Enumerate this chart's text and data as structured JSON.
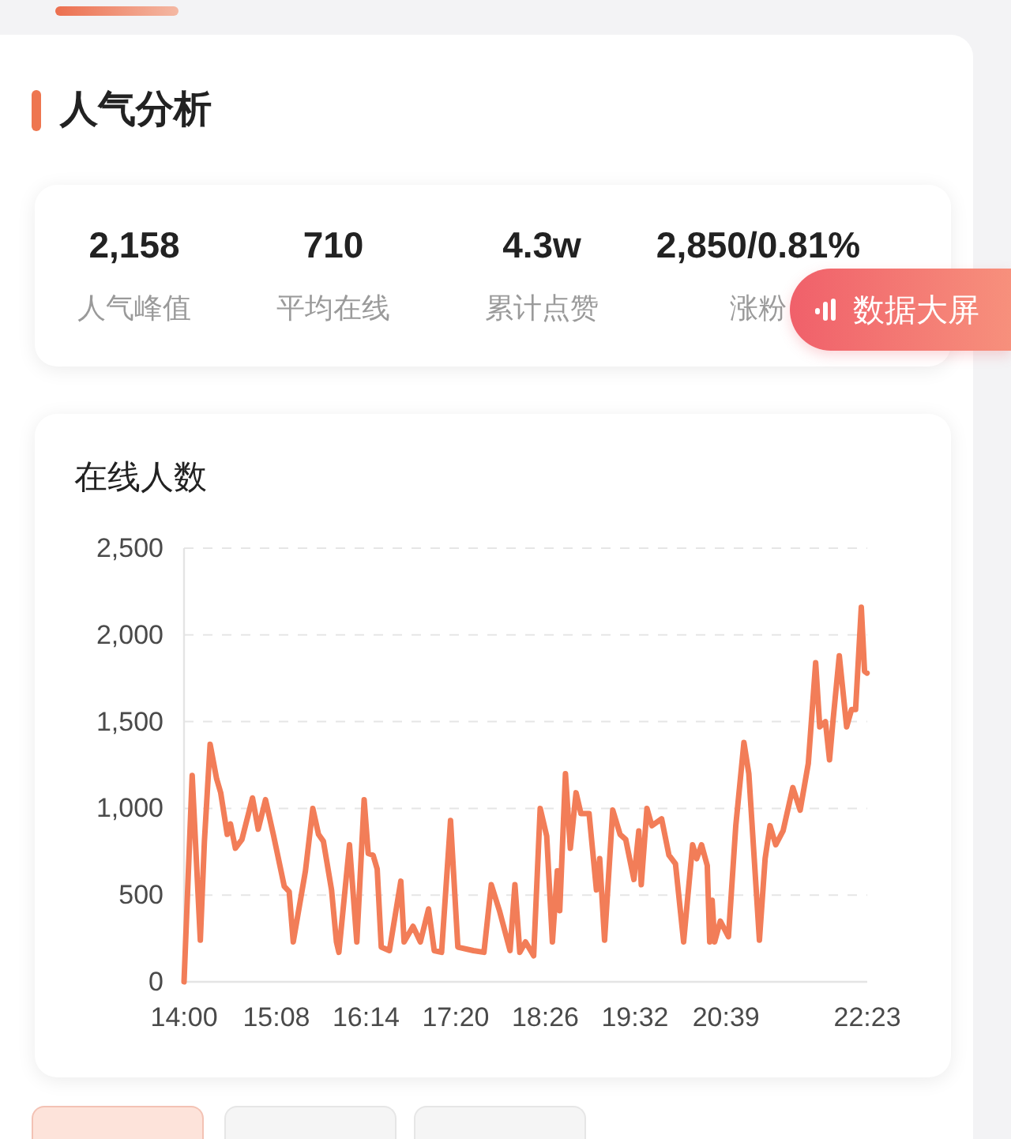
{
  "chart_data": [
    {
      "type": "other",
      "title": "人气分析",
      "annotations": [
        "2,158",
        "人气峰值",
        "710",
        "平均在线",
        "4.3w",
        "累计点赞",
        "2,850/0.81%",
        "涨粉",
        "数据大屏"
      ]
    },
    {
      "type": "line",
      "title": "在线人数",
      "color": "#f27d58",
      "grid": "y",
      "xlim": [
        14,
        22.383
      ],
      "xticks": [
        {
          "value": 14,
          "label": "14:00"
        },
        {
          "value": 15.133,
          "label": "15:08"
        },
        {
          "value": 16.233,
          "label": "16:14"
        },
        {
          "value": 17.333,
          "label": "17:20"
        },
        {
          "value": 18.433,
          "label": "18:26"
        },
        {
          "value": 19.533,
          "label": "19:32"
        },
        {
          "value": 20.65,
          "label": "20:39"
        },
        {
          "value": 22.383,
          "label": "22:23"
        }
      ],
      "ylim": [
        0,
        2500
      ],
      "yticks": [
        0,
        500,
        {
          "value": 1000,
          "label": "1,000"
        },
        {
          "value": 1500,
          "label": "1,500"
        },
        {
          "value": 2000,
          "label": "2,000"
        },
        {
          "value": 2500,
          "label": "2,500"
        }
      ],
      "x": [
        14.0,
        14.1,
        14.2,
        14.25,
        14.32,
        14.4,
        14.45,
        14.53,
        14.57,
        14.63,
        14.71,
        14.84,
        14.91,
        15.0,
        15.1,
        15.23,
        15.29,
        15.34,
        15.49,
        15.58,
        15.65,
        15.71,
        15.81,
        15.87,
        15.9,
        16.03,
        16.12,
        16.21,
        16.26,
        16.32,
        16.37,
        16.42,
        16.52,
        16.66,
        16.7,
        16.81,
        16.9,
        17.0,
        17.07,
        17.16,
        17.27,
        17.36,
        17.55,
        17.68,
        17.77,
        17.87,
        18.0,
        18.06,
        18.12,
        18.19,
        18.29,
        18.37,
        18.45,
        18.52,
        18.58,
        18.61,
        18.68,
        18.74,
        18.81,
        18.87,
        18.97,
        19.06,
        19.1,
        19.16,
        19.26,
        19.35,
        19.42,
        19.52,
        19.58,
        19.61,
        19.68,
        19.74,
        19.86,
        19.95,
        20.03,
        20.13,
        20.24,
        20.29,
        20.35,
        20.42,
        20.45,
        20.48,
        20.51,
        20.58,
        20.68,
        20.77,
        20.87,
        20.93,
        21.06,
        21.13,
        21.19,
        21.26,
        21.35,
        21.47,
        21.56,
        21.66,
        21.75,
        21.8,
        21.87,
        21.92,
        21.96,
        22.04,
        22.13,
        22.19,
        22.24,
        22.31,
        22.35,
        22.38
      ],
      "values": [
        0,
        1190,
        240,
        810,
        1370,
        1170,
        1090,
        850,
        910,
        770,
        820,
        1060,
        880,
        1050,
        840,
        550,
        520,
        230,
        640,
        1000,
        850,
        810,
        530,
        230,
        170,
        790,
        230,
        1050,
        740,
        730,
        650,
        200,
        180,
        580,
        230,
        320,
        230,
        420,
        180,
        170,
        930,
        200,
        180,
        170,
        560,
        410,
        180,
        560,
        170,
        230,
        150,
        1000,
        840,
        230,
        640,
        410,
        1200,
        770,
        1090,
        970,
        970,
        530,
        710,
        240,
        990,
        850,
        820,
        590,
        870,
        560,
        1000,
        900,
        940,
        730,
        680,
        230,
        790,
        710,
        790,
        670,
        230,
        470,
        230,
        350,
        260,
        900,
        1380,
        1200,
        240,
        710,
        900,
        790,
        870,
        1120,
        990,
        1260,
        1840,
        1470,
        1500,
        1280,
        1490,
        1880,
        1470,
        1570,
        1570,
        2160,
        1790,
        1780
      ]
    }
  ]
}
